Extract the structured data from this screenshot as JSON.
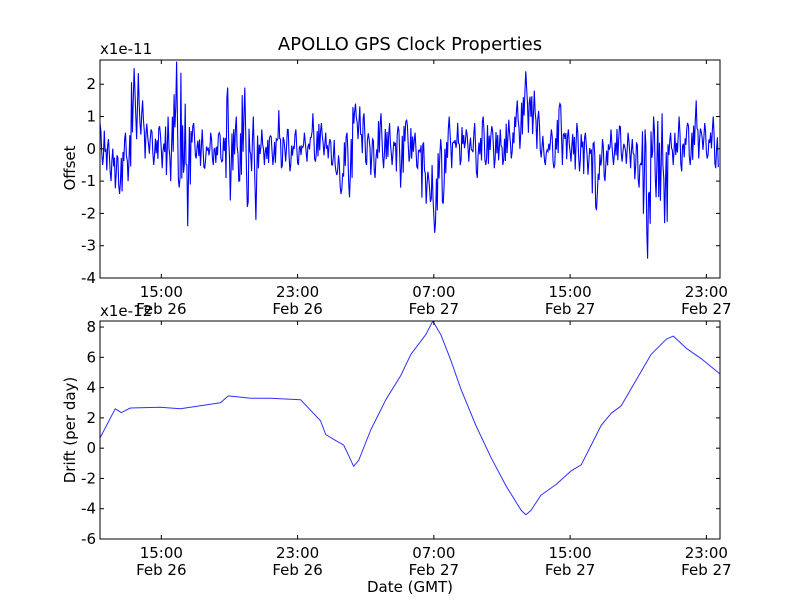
{
  "title": "APOLLO GPS Clock Properties",
  "x_tick_labels": [
    {
      "time": "15:00",
      "date": "Feb 26"
    },
    {
      "time": "23:00",
      "date": "Feb 26"
    },
    {
      "time": "07:00",
      "date": "Feb 27"
    },
    {
      "time": "15:00",
      "date": "Feb 27"
    },
    {
      "time": "23:00",
      "date": "Feb 27"
    }
  ],
  "chart_data": [
    {
      "type": "line",
      "name": "offset",
      "title": "APOLLO GPS Clock Properties",
      "ylabel": "Offset",
      "xlabel": "",
      "y_multiplier": "x1e-11",
      "x_units": "hours relative to Feb 26 15:00 GMT",
      "xlim": [
        -3.6,
        32.8
      ],
      "x_ticks": [
        0,
        8,
        16,
        24,
        32
      ],
      "ylim": [
        -4,
        2.75
      ],
      "y_ticks": [
        -4,
        -3,
        -2,
        -1,
        0,
        1,
        2
      ],
      "color": "#0000ff",
      "envelope_note": "noisy series given as [x, min, max] per 0.5 h bin",
      "envelope": [
        [
          -3.5,
          -0.5,
          0.8
        ],
        [
          -3.0,
          -1.0,
          0.3
        ],
        [
          -2.5,
          -1.4,
          -0.2
        ],
        [
          -2.0,
          -1.0,
          0.5
        ],
        [
          -1.5,
          0.3,
          2.5
        ],
        [
          -1.0,
          -0.3,
          1.5
        ],
        [
          -0.5,
          -0.5,
          0.6
        ],
        [
          0.0,
          -0.6,
          0.7
        ],
        [
          0.5,
          -1.0,
          1.0
        ],
        [
          1.0,
          -1.2,
          2.7
        ],
        [
          1.5,
          -2.4,
          1.4
        ],
        [
          2.0,
          -0.3,
          0.8
        ],
        [
          2.5,
          -0.6,
          0.6
        ],
        [
          3.0,
          -0.5,
          0.5
        ],
        [
          3.5,
          -0.4,
          0.5
        ],
        [
          4.0,
          -1.6,
          1.9
        ],
        [
          4.5,
          -1.0,
          1.0
        ],
        [
          5.0,
          -1.8,
          1.9
        ],
        [
          5.5,
          -2.2,
          1.0
        ],
        [
          6.0,
          -0.5,
          0.6
        ],
        [
          6.5,
          -0.5,
          0.4
        ],
        [
          7.0,
          -0.6,
          1.2
        ],
        [
          7.5,
          -0.7,
          0.6
        ],
        [
          8.0,
          -0.5,
          0.6
        ],
        [
          8.5,
          -0.4,
          0.5
        ],
        [
          9.0,
          -0.4,
          1.1
        ],
        [
          9.5,
          -0.2,
          0.8
        ],
        [
          10.0,
          -0.5,
          0.3
        ],
        [
          10.5,
          -1.4,
          -0.2
        ],
        [
          11.0,
          -1.5,
          0.5
        ],
        [
          11.5,
          0.3,
          1.4
        ],
        [
          12.0,
          -0.5,
          1.1
        ],
        [
          12.5,
          -0.9,
          0.3
        ],
        [
          13.0,
          -0.6,
          1.1
        ],
        [
          13.5,
          -0.5,
          0.8
        ],
        [
          14.0,
          -1.2,
          0.7
        ],
        [
          14.5,
          -0.4,
          0.9
        ],
        [
          15.0,
          -0.6,
          0.5
        ],
        [
          15.5,
          -1.7,
          0.2
        ],
        [
          16.0,
          -2.6,
          -0.5
        ],
        [
          16.5,
          -1.7,
          0.3
        ],
        [
          17.0,
          -0.6,
          1.0
        ],
        [
          17.5,
          -0.5,
          0.8
        ],
        [
          18.0,
          -0.4,
          0.6
        ],
        [
          18.5,
          -0.9,
          0.8
        ],
        [
          19.0,
          -0.5,
          1.0
        ],
        [
          19.5,
          -0.6,
          0.7
        ],
        [
          20.0,
          -0.5,
          0.6
        ],
        [
          20.5,
          -0.3,
          0.9
        ],
        [
          21.0,
          0.0,
          1.5
        ],
        [
          21.5,
          0.5,
          2.4
        ],
        [
          22.0,
          0.0,
          1.8
        ],
        [
          22.5,
          -0.5,
          0.4
        ],
        [
          23.0,
          -0.6,
          0.6
        ],
        [
          23.5,
          -0.5,
          1.4
        ],
        [
          24.0,
          -0.4,
          0.6
        ],
        [
          24.5,
          -0.7,
          0.8
        ],
        [
          25.0,
          -0.8,
          0.5
        ],
        [
          25.5,
          -1.9,
          0.2
        ],
        [
          26.0,
          -1.0,
          0.3
        ],
        [
          26.5,
          -0.5,
          0.6
        ],
        [
          27.0,
          -0.4,
          0.7
        ],
        [
          27.5,
          -0.6,
          0.5
        ],
        [
          28.0,
          -1.2,
          0.2
        ],
        [
          28.5,
          -3.4,
          0.6
        ],
        [
          29.0,
          -1.5,
          1.0
        ],
        [
          29.5,
          -2.3,
          1.1
        ],
        [
          30.0,
          -0.5,
          0.5
        ],
        [
          30.5,
          -0.7,
          1.0
        ],
        [
          31.0,
          -0.5,
          0.8
        ],
        [
          31.5,
          -0.3,
          1.5
        ],
        [
          32.0,
          -0.3,
          0.8
        ],
        [
          32.5,
          -0.6,
          1.0
        ]
      ]
    },
    {
      "type": "line",
      "name": "drift",
      "ylabel": "Drift (per day)",
      "xlabel": "Date (GMT)",
      "y_multiplier": "x1e-12",
      "x_units": "hours relative to Feb 26 15:00 GMT",
      "xlim": [
        -3.6,
        32.8
      ],
      "x_ticks": [
        0,
        8,
        16,
        24,
        32
      ],
      "ylim": [
        -6,
        8.4
      ],
      "y_ticks": [
        -6,
        -4,
        -2,
        0,
        2,
        4,
        6,
        8
      ],
      "color": "#3030ff",
      "x": [
        -3.59,
        -2.71,
        -2.35,
        -1.82,
        -0.06,
        1.12,
        2.29,
        3.47,
        3.94,
        5.24,
        6.41,
        8.18,
        9.35,
        9.65,
        10.24,
        10.71,
        11.0,
        11.29,
        11.59,
        12.29,
        13.18,
        14.06,
        14.65,
        15.53,
        15.94,
        16.41,
        17.0,
        17.59,
        18.47,
        19.35,
        20.24,
        21.12,
        21.41,
        21.71,
        22.29,
        23.18,
        24.06,
        24.65,
        25.24,
        25.82,
        26.41,
        27.0,
        27.88,
        28.76,
        29.65,
        30.06,
        30.82,
        31.71,
        32.8
      ],
      "y": [
        0.7,
        2.6,
        2.35,
        2.65,
        2.7,
        2.6,
        2.8,
        3.0,
        3.45,
        3.3,
        3.3,
        3.2,
        1.8,
        0.9,
        0.5,
        0.2,
        -0.5,
        -1.2,
        -0.8,
        1.2,
        3.2,
        4.8,
        6.2,
        7.5,
        8.4,
        7.5,
        5.8,
        3.9,
        1.5,
        -0.6,
        -2.5,
        -4.1,
        -4.4,
        -4.1,
        -3.1,
        -2.4,
        -1.5,
        -1.1,
        0.2,
        1.5,
        2.3,
        2.8,
        4.5,
        6.2,
        7.2,
        7.4,
        6.6,
        5.9,
        4.9
      ]
    }
  ]
}
